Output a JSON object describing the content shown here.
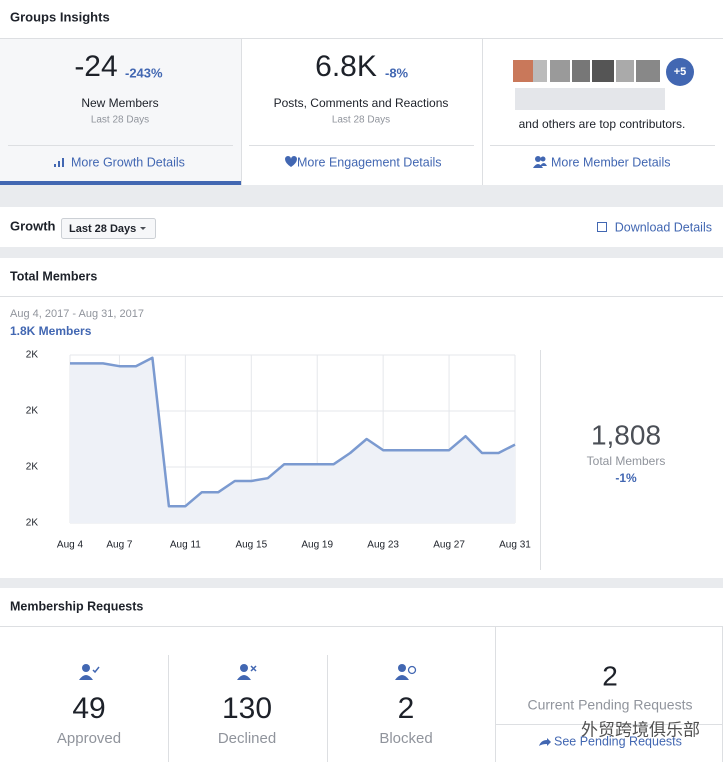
{
  "header": {
    "title": "Groups Insights"
  },
  "summary": [
    {
      "value": "-24",
      "change": "-243%",
      "label": "New Members",
      "period": "Last 28 Days",
      "link": "More Growth Details"
    },
    {
      "value": "6.8K",
      "change": "-8%",
      "label": "Posts, Comments and Reactions",
      "period": "Last 28 Days",
      "link": "More Engagement Details"
    },
    {
      "badge": "+5",
      "label": "and others are top contributors.",
      "link": "More Member Details"
    }
  ],
  "growth": {
    "label": "Growth",
    "filter": "Last 28 Days",
    "download": "Download Details"
  },
  "chart_data": {
    "type": "line",
    "title": "Total Members",
    "subtitle": "Aug 4, 2017 - Aug 31, 2017",
    "annotation": "1.8K Members",
    "categories": [
      "Aug 4",
      null,
      null,
      "Aug 7",
      null,
      null,
      null,
      "Aug 11",
      null,
      null,
      null,
      "Aug 15",
      null,
      null,
      null,
      "Aug 19",
      null,
      null,
      null,
      "Aug 23",
      null,
      null,
      null,
      "Aug 27",
      null,
      null,
      null,
      "Aug 31"
    ],
    "series": [
      {
        "name": "Total Members",
        "color": "#7b9ad0",
        "values": [
          1837,
          1837,
          1837,
          1836,
          1836,
          1839,
          1786,
          1786,
          1791,
          1791,
          1795,
          1795,
          1796,
          1801,
          1801,
          1801,
          1801,
          1805,
          1810,
          1806,
          1806,
          1806,
          1806,
          1806,
          1811,
          1805,
          1805,
          1808
        ]
      }
    ],
    "ylim": [
      1780,
      1840
    ],
    "yticks": [
      {
        "value": 1780,
        "label": "2K"
      },
      {
        "value": 1800,
        "label": "2K"
      },
      {
        "value": 1820,
        "label": "2K"
      },
      {
        "value": 1840,
        "label": "2K"
      }
    ],
    "grid": true
  },
  "stat": {
    "value": "1,808",
    "label": "Total Members",
    "change": "-1%"
  },
  "membership": {
    "title": "Membership Requests",
    "items": [
      {
        "count": 49,
        "label": "Approved"
      },
      {
        "count": 130,
        "label": "Declined"
      },
      {
        "count": 2,
        "label": "Blocked"
      }
    ],
    "pending": {
      "count": 2,
      "label": "Current Pending Requests",
      "link": "See Pending Requests"
    }
  },
  "watermark": "外贸跨境俱乐部"
}
